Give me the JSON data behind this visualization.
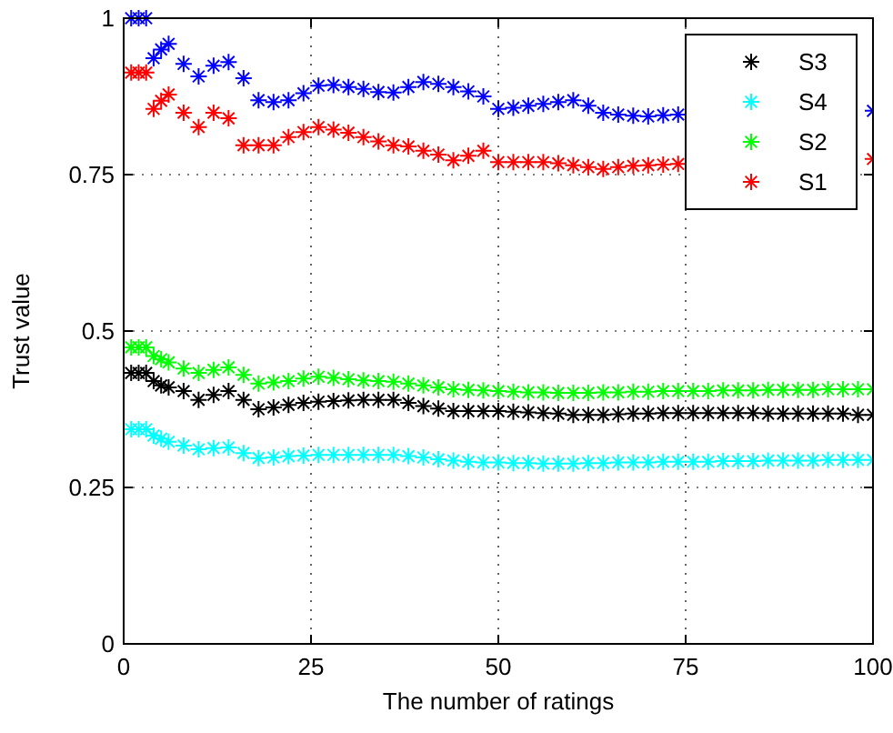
{
  "chart_data": {
    "type": "scatter",
    "xlabel": "The number of ratings",
    "ylabel": "Trust value",
    "marker": "cross",
    "grid": true,
    "legend": "top right",
    "xlim": [
      0,
      100
    ],
    "ylim": [
      0,
      1
    ],
    "xticks": [
      0,
      25,
      50,
      75,
      100
    ],
    "yticks": [
      0,
      0.25,
      0.5,
      0.75,
      1
    ],
    "x": [
      1,
      2,
      3,
      4,
      5,
      6,
      8,
      10,
      12,
      14,
      16,
      18,
      20,
      22,
      24,
      26,
      28,
      30,
      32,
      34,
      36,
      38,
      40,
      42,
      44,
      46,
      48,
      50,
      52,
      54,
      56,
      58,
      60,
      62,
      64,
      66,
      68,
      70,
      72,
      74,
      76,
      78,
      80,
      82,
      84,
      86,
      88,
      90,
      92,
      94,
      96,
      98,
      100
    ],
    "series": [
      {
        "name": "S3",
        "color": "#000000",
        "values": [
          0.433,
          0.433,
          0.433,
          0.42,
          0.413,
          0.41,
          0.404,
          0.39,
          0.398,
          0.404,
          0.39,
          0.375,
          0.378,
          0.382,
          0.385,
          0.387,
          0.388,
          0.389,
          0.39,
          0.39,
          0.39,
          0.385,
          0.38,
          0.376,
          0.372,
          0.372,
          0.372,
          0.372,
          0.371,
          0.37,
          0.369,
          0.368,
          0.366,
          0.366,
          0.366,
          0.367,
          0.368,
          0.368,
          0.369,
          0.369,
          0.369,
          0.369,
          0.369,
          0.369,
          0.369,
          0.368,
          0.368,
          0.368,
          0.368,
          0.368,
          0.368,
          0.366,
          0.366
        ]
      },
      {
        "name": "S4",
        "color": "#00ffff",
        "values": [
          0.343,
          0.343,
          0.343,
          0.333,
          0.328,
          0.323,
          0.317,
          0.311,
          0.313,
          0.314,
          0.305,
          0.297,
          0.298,
          0.3,
          0.301,
          0.302,
          0.302,
          0.302,
          0.302,
          0.302,
          0.302,
          0.3,
          0.298,
          0.295,
          0.293,
          0.291,
          0.29,
          0.29,
          0.289,
          0.289,
          0.288,
          0.288,
          0.288,
          0.289,
          0.289,
          0.29,
          0.29,
          0.29,
          0.291,
          0.291,
          0.291,
          0.291,
          0.292,
          0.292,
          0.292,
          0.293,
          0.293,
          0.293,
          0.293,
          0.294,
          0.294,
          0.294,
          0.294
        ]
      },
      {
        "name": "S2",
        "color": "#00ff00",
        "values": [
          0.474,
          0.474,
          0.474,
          0.46,
          0.455,
          0.45,
          0.44,
          0.433,
          0.438,
          0.442,
          0.43,
          0.416,
          0.418,
          0.42,
          0.424,
          0.427,
          0.425,
          0.423,
          0.421,
          0.42,
          0.419,
          0.416,
          0.413,
          0.41,
          0.407,
          0.406,
          0.405,
          0.404,
          0.403,
          0.402,
          0.402,
          0.401,
          0.401,
          0.401,
          0.402,
          0.402,
          0.403,
          0.403,
          0.404,
          0.404,
          0.404,
          0.404,
          0.405,
          0.405,
          0.405,
          0.406,
          0.406,
          0.406,
          0.406,
          0.407,
          0.407,
          0.407,
          0.407
        ]
      },
      {
        "name": "S1",
        "color": "#ff0000",
        "values": [
          0.913,
          0.913,
          0.913,
          0.855,
          0.868,
          0.878,
          0.849,
          0.826,
          0.849,
          0.84,
          0.797,
          0.797,
          0.797,
          0.81,
          0.818,
          0.826,
          0.822,
          0.817,
          0.81,
          0.803,
          0.797,
          0.795,
          0.788,
          0.782,
          0.773,
          0.78,
          0.788,
          0.77,
          0.77,
          0.77,
          0.77,
          0.768,
          0.765,
          0.762,
          0.759,
          0.762,
          0.764,
          0.765,
          0.766,
          0.767,
          null,
          null,
          null,
          null,
          null,
          null,
          null,
          null,
          null,
          null,
          null,
          null,
          0.775
        ]
      },
      {
        "color": "#0000ff",
        "values": [
          1,
          1,
          1,
          0.936,
          0.95,
          0.959,
          0.927,
          0.907,
          0.924,
          0.93,
          0.904,
          0.869,
          0.866,
          0.869,
          0.88,
          0.892,
          0.893,
          0.89,
          0.887,
          0.882,
          0.881,
          0.89,
          0.898,
          0.895,
          0.89,
          0.883,
          0.875,
          0.855,
          0.857,
          0.86,
          0.863,
          0.866,
          0.869,
          0.86,
          0.849,
          0.846,
          0.844,
          0.843,
          0.845,
          0.846,
          null,
          null,
          null,
          null,
          null,
          null,
          null,
          null,
          null,
          null,
          null,
          null,
          0.852
        ]
      }
    ]
  }
}
